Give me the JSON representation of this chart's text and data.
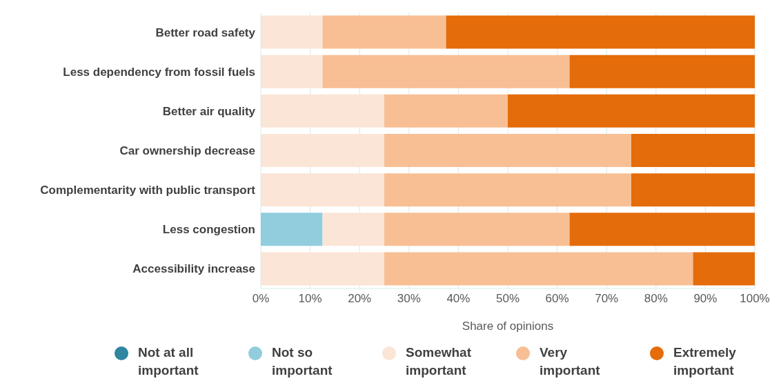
{
  "chart_data": {
    "type": "bar",
    "orientation": "horizontal",
    "stacked": true,
    "xlabel": "Share of opinions",
    "categories": [
      "Better road safety",
      "Less dependency from fossil fuels",
      "Better air quality",
      "Car ownership decrease",
      "Complementarity with public transport",
      "Less congestion",
      "Accessibility increase"
    ],
    "series": [
      {
        "name": "Not at all important",
        "color": "#2e86a0",
        "values": [
          0,
          0,
          0,
          0,
          0,
          0,
          0
        ]
      },
      {
        "name": "Not so important",
        "color": "#92cddd",
        "values": [
          0,
          0,
          0,
          0,
          0,
          12.5,
          0
        ]
      },
      {
        "name": "Somewhat important",
        "color": "#fbe5d6",
        "values": [
          12.5,
          12.5,
          25,
          25,
          25,
          12.5,
          25
        ]
      },
      {
        "name": "Very important",
        "color": "#f8bf94",
        "values": [
          25,
          50,
          25,
          50,
          50,
          37.5,
          62.5
        ]
      },
      {
        "name": "Extremely important",
        "color": "#e46c0a",
        "values": [
          62.5,
          37.5,
          50,
          25,
          25,
          37.5,
          12.5
        ]
      }
    ],
    "xlim": [
      0,
      100
    ],
    "xticks": [
      {
        "value": 0,
        "label": "0%"
      },
      {
        "value": 10,
        "label": "10%"
      },
      {
        "value": 20,
        "label": "20%"
      },
      {
        "value": 30,
        "label": "30%"
      },
      {
        "value": 40,
        "label": "40%"
      },
      {
        "value": 50,
        "label": "50%"
      },
      {
        "value": 60,
        "label": "60%"
      },
      {
        "value": 70,
        "label": "70%"
      },
      {
        "value": 80,
        "label": "80%"
      },
      {
        "value": 90,
        "label": "90%"
      },
      {
        "value": 100,
        "label": "100%"
      }
    ],
    "grid": "x",
    "legend": "bottom",
    "marker": "circle"
  }
}
